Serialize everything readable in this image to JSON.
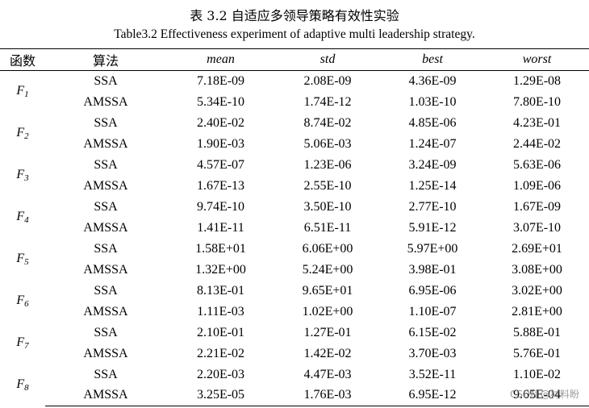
{
  "title_cn": "表 3.2  自适应多领导策略有效性实验",
  "title_en": "Table3.2 Effectiveness experiment of adaptive multi leadership strategy.",
  "headers": {
    "func": "函数",
    "algo": "算法",
    "mean": "mean",
    "std": "std",
    "best": "best",
    "worst": "worst"
  },
  "rows": [
    {
      "fn": "F",
      "sub": "1",
      "data": [
        {
          "algo": "SSA",
          "mean": "7.18E-09",
          "std": "2.08E-09",
          "best": "4.36E-09",
          "worst": "1.29E-08"
        },
        {
          "algo": "AMSSA",
          "mean": "5.34E-10",
          "std": "1.74E-12",
          "best": "1.03E-10",
          "worst": "7.80E-10"
        }
      ]
    },
    {
      "fn": "F",
      "sub": "2",
      "data": [
        {
          "algo": "SSA",
          "mean": "2.40E-02",
          "std": "8.74E-02",
          "best": "4.85E-06",
          "worst": "4.23E-01"
        },
        {
          "algo": "AMSSA",
          "mean": "1.90E-03",
          "std": "5.06E-03",
          "best": "1.24E-07",
          "worst": "2.44E-02"
        }
      ]
    },
    {
      "fn": "F",
      "sub": "3",
      "data": [
        {
          "algo": "SSA",
          "mean": "4.57E-07",
          "std": "1.23E-06",
          "best": "3.24E-09",
          "worst": "5.63E-06"
        },
        {
          "algo": "AMSSA",
          "mean": "1.67E-13",
          "std": "2.55E-10",
          "best": "1.25E-14",
          "worst": "1.09E-06"
        }
      ]
    },
    {
      "fn": "F",
      "sub": "4",
      "data": [
        {
          "algo": "SSA",
          "mean": "9.74E-10",
          "std": "3.50E-10",
          "best": "2.77E-10",
          "worst": "1.67E-09"
        },
        {
          "algo": "AMSSA",
          "mean": "1.41E-11",
          "std": "6.51E-11",
          "best": "5.91E-12",
          "worst": "3.07E-10"
        }
      ]
    },
    {
      "fn": "F",
      "sub": "5",
      "data": [
        {
          "algo": "SSA",
          "mean": "1.58E+01",
          "std": "6.06E+00",
          "best": "5.97E+00",
          "worst": "2.69E+01"
        },
        {
          "algo": "AMSSA",
          "mean": "1.32E+00",
          "std": "5.24E+00",
          "best": "3.98E-01",
          "worst": "3.08E+00"
        }
      ]
    },
    {
      "fn": "F",
      "sub": "6",
      "data": [
        {
          "algo": "SSA",
          "mean": "8.13E-01",
          "std": "9.65E+01",
          "best": "6.95E-06",
          "worst": "3.02E+00"
        },
        {
          "algo": "AMSSA",
          "mean": "1.11E-03",
          "std": "1.02E+00",
          "best": "1.10E-07",
          "worst": "2.81E+00"
        }
      ]
    },
    {
      "fn": "F",
      "sub": "7",
      "data": [
        {
          "algo": "SSA",
          "mean": "2.10E-01",
          "std": "1.27E-01",
          "best": "6.15E-02",
          "worst": "5.88E-01"
        },
        {
          "algo": "AMSSA",
          "mean": "2.21E-02",
          "std": "1.42E-02",
          "best": "3.70E-03",
          "worst": "5.76E-01"
        }
      ]
    },
    {
      "fn": "F",
      "sub": "8",
      "data": [
        {
          "algo": "SSA",
          "mean": "2.20E-03",
          "std": "4.47E-03",
          "best": "3.52E-11",
          "worst": "1.10E-02"
        },
        {
          "algo": "AMSSA",
          "mean": "3.25E-05",
          "std": "1.76E-03",
          "best": "6.95E-12",
          "worst": "9.65E-04"
        }
      ]
    }
  ],
  "watermark": "CSDN @材料盼"
}
